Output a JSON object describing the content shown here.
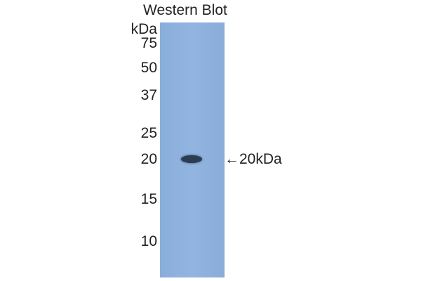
{
  "title": "Western Blot",
  "unit_label": "kDa",
  "markers": [
    "75",
    "50",
    "37",
    "25",
    "20",
    "15",
    "10"
  ],
  "band_label": "←20kDa",
  "colors": {
    "lane": "#8fb0dc",
    "band": "#2c3d52"
  }
}
